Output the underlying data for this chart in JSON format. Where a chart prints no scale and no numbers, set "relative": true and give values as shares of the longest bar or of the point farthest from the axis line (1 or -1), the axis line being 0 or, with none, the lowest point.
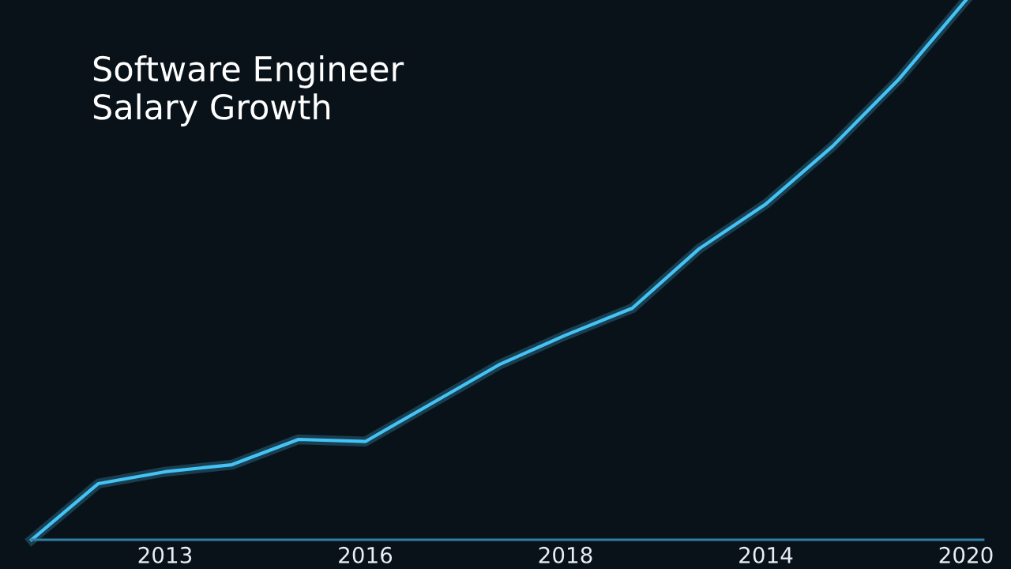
{
  "chart_data": {
    "type": "line",
    "title": "Software Engineer\nSalary Growth",
    "relative": true,
    "categories": [
      null,
      null,
      "2013",
      null,
      null,
      "2016",
      null,
      null,
      "2018",
      null,
      null,
      "2014",
      null,
      null,
      "2020"
    ],
    "series": [
      {
        "color": "#45c3f5",
        "values": [
          0,
          0.104,
          0.126,
          0.139,
          0.186,
          0.182,
          0.253,
          0.324,
          0.379,
          0.429,
          0.539,
          0.622,
          0.729,
          0.854,
          1
        ]
      }
    ],
    "marker": "none",
    "line_style": "solid"
  }
}
